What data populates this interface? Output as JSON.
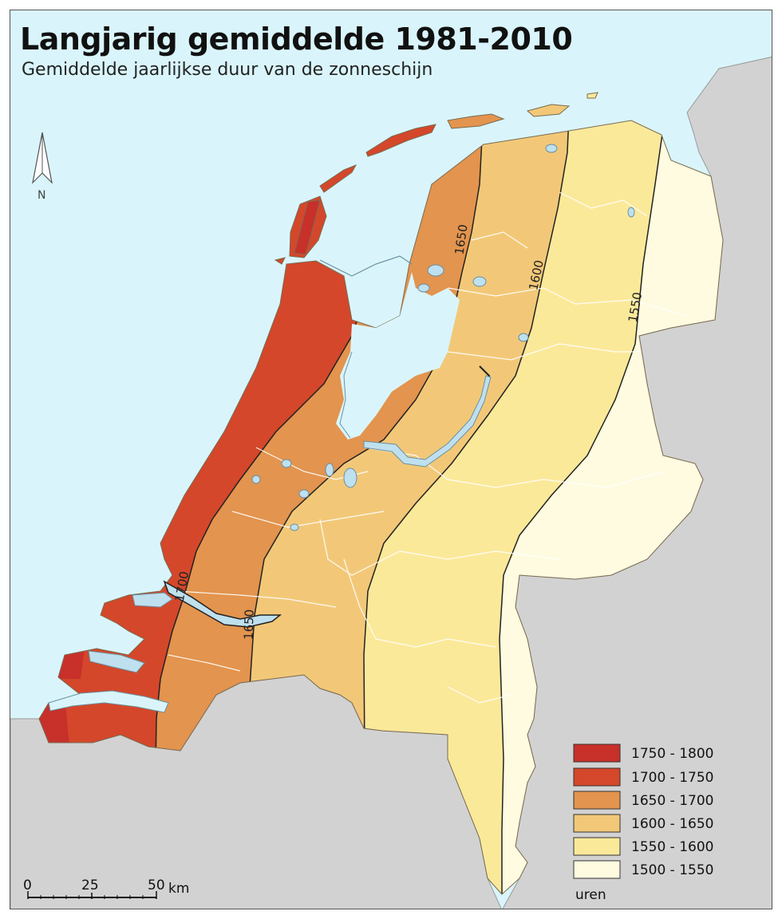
{
  "title": "Langjarig gemiddelde 1981-2010",
  "subtitle": "Gemiddelde jaarlijkse duur van de zonneschijn",
  "north_label": "N",
  "contours": [
    "1700",
    "1650",
    "1600",
    "1550",
    "1700",
    "1650"
  ],
  "scale": {
    "ticks": [
      "0",
      "25",
      "50"
    ],
    "unit": "km"
  },
  "legend": {
    "unit": "uren",
    "classes": [
      {
        "label": "1750 - 1800",
        "color": "#c8302a"
      },
      {
        "label": "1700 - 1750",
        "color": "#d4472a"
      },
      {
        "label": "1650 - 1700",
        "color": "#e3944e"
      },
      {
        "label": "1600 - 1650",
        "color": "#f2c878"
      },
      {
        "label": "1550 - 1600",
        "color": "#fbe99a"
      },
      {
        "label": "1500 - 1550",
        "color": "#fefbe0"
      }
    ]
  },
  "colors": {
    "sea": "#d9f5fb",
    "foreign_land": "#d2d2d2",
    "water": "#bfe0ee"
  }
}
